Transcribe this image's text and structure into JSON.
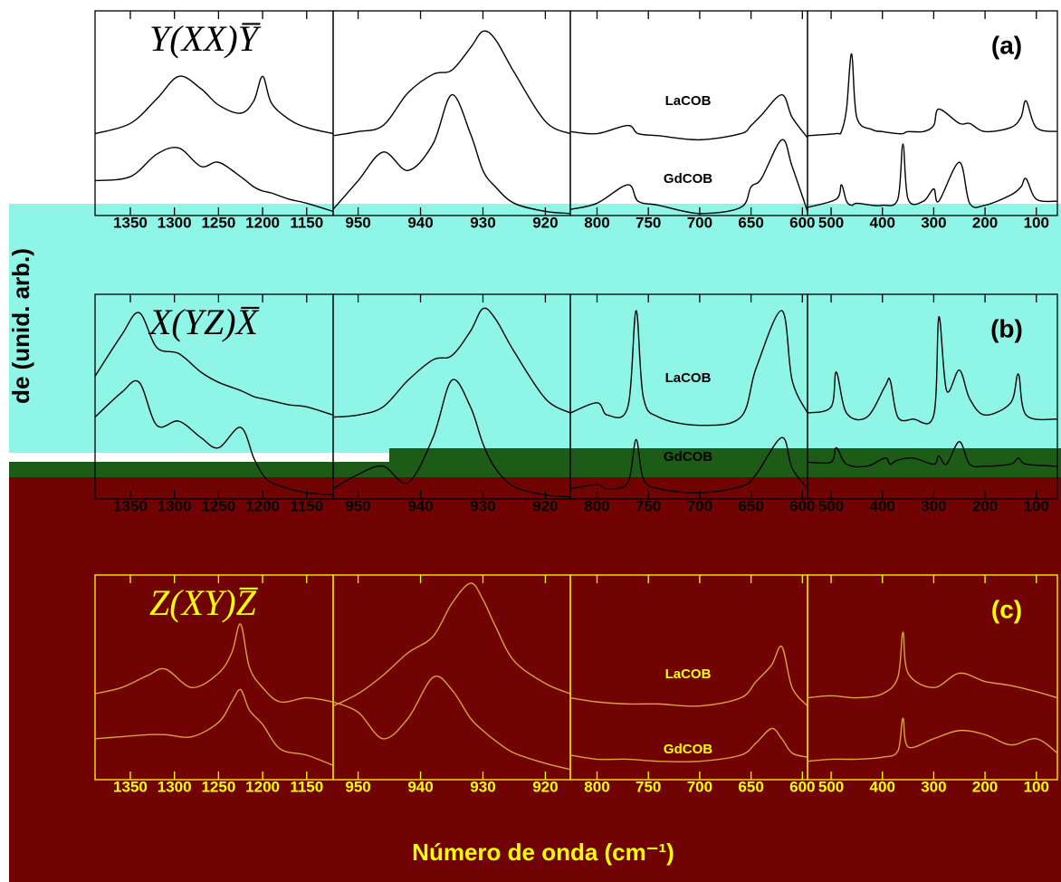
{
  "chart_data": [
    {
      "type": "line",
      "label": "(a)",
      "annotation": "Y(XX)Y̅",
      "ylim": [
        0,
        100
      ],
      "subplots": [
        {
          "xlim": [
            1390,
            1120
          ],
          "xticks": [
            1350,
            1300,
            1250,
            1200,
            1150
          ],
          "x": [
            1390,
            1350,
            1320,
            1295,
            1270,
            1250,
            1225,
            1210,
            1200,
            1190,
            1170,
            1150,
            1120
          ],
          "series": [
            {
              "name": "LaCOB",
              "color": "#000000",
              "values": [
                40,
                45,
                57,
                68,
                62,
                54,
                50,
                56,
                68,
                55,
                47,
                43,
                40
              ]
            },
            {
              "name": "GdCOB",
              "color": "#000000",
              "values": [
                17,
                19,
                30,
                33,
                24,
                26,
                19,
                14,
                12,
                11,
                8,
                6,
                2
              ]
            }
          ]
        },
        {
          "xlim": [
            954,
            916
          ],
          "xticks": [
            950,
            940,
            930,
            920
          ],
          "x": [
            954,
            950,
            946,
            942,
            938,
            935,
            932,
            930,
            928,
            925,
            920,
            916
          ],
          "series": [
            {
              "name": "LaCOB",
              "color": "#000000",
              "values": [
                39,
                41,
                44,
                60,
                69,
                71,
                82,
                90,
                86,
                70,
                46,
                40
              ]
            },
            {
              "name": "GdCOB",
              "color": "#000000",
              "values": [
                3,
                17,
                31,
                22,
                35,
                59,
                40,
                22,
                14,
                6,
                2,
                1
              ]
            }
          ]
        },
        {
          "xlim": [
            826,
            595
          ],
          "xticks": [
            800,
            750,
            700,
            650,
            600
          ],
          "x": [
            826,
            800,
            770,
            760,
            740,
            700,
            660,
            650,
            640,
            620,
            610,
            595
          ],
          "series": [
            {
              "name": "LaCOB",
              "color": "#000000",
              "values": [
                41,
                40,
                44,
                40,
                39,
                37,
                40,
                44,
                49,
                59,
                48,
                38
              ]
            },
            {
              "name": "GdCOB",
              "color": "#000000",
              "values": [
                3,
                6,
                15,
                7,
                5,
                1,
                4,
                14,
                18,
                37,
                24,
                2
              ]
            }
          ]
        },
        {
          "xlim": [
            546,
            59
          ],
          "xticks": [
            500,
            400,
            300,
            200,
            100
          ],
          "x": [
            546,
            490,
            480,
            470,
            460,
            450,
            420,
            400,
            370,
            360,
            350,
            320,
            300,
            290,
            250,
            230,
            200,
            150,
            130,
            120,
            100,
            59
          ],
          "series": [
            {
              "name": "LaCOB",
              "color": "#000000",
              "values": [
                39,
                40,
                41,
                52,
                79,
                48,
                42,
                41,
                40,
                40,
                41,
                41,
                44,
                52,
                45,
                45,
                41,
                43,
                48,
                56,
                43,
                41
              ]
            },
            {
              "name": "GdCOB",
              "color": "#000000",
              "values": [
                4,
                8,
                15,
                7,
                5,
                6,
                5,
                5,
                8,
                35,
                8,
                7,
                13,
                7,
                26,
                6,
                5,
                10,
                14,
                18,
                8,
                7
              ]
            }
          ]
        }
      ]
    },
    {
      "type": "line",
      "label": "(b)",
      "annotation": "X(YZ)X̅",
      "ylabel": "de (unid. arb.)",
      "ylim": [
        0,
        100
      ],
      "subplots": [
        {
          "xlim": [
            1390,
            1120
          ],
          "xticks": [
            1350,
            1300,
            1250,
            1200,
            1150
          ],
          "x": [
            1390,
            1360,
            1340,
            1320,
            1295,
            1270,
            1250,
            1225,
            1210,
            1200,
            1190,
            1170,
            1150,
            1120
          ],
          "series": [
            {
              "name": "LaCOB",
              "color": "#000000",
              "values": [
                60,
                80,
                91,
                74,
                71,
                62,
                57,
                53,
                50,
                49,
                48,
                46,
                45,
                41
              ]
            },
            {
              "name": "GdCOB",
              "color": "#000000",
              "values": [
                40,
                52,
                57,
                36,
                38,
                30,
                25,
                35,
                20,
                12,
                8,
                5,
                3,
                2
              ]
            }
          ]
        },
        {
          "xlim": [
            954,
            916
          ],
          "xticks": [
            950,
            940,
            930,
            920
          ],
          "x": [
            954,
            950,
            946,
            942,
            938,
            935,
            932,
            930,
            928,
            925,
            920,
            916
          ],
          "series": [
            {
              "name": "LaCOB",
              "color": "#000000",
              "values": [
                40,
                41,
                45,
                58,
                68,
                70,
                82,
                93,
                88,
                72,
                49,
                42
              ]
            },
            {
              "name": "GdCOB",
              "color": "#000000",
              "values": [
                5,
                12,
                16,
                8,
                30,
                58,
                45,
                27,
                15,
                6,
                2,
                1
              ]
            }
          ]
        },
        {
          "xlim": [
            826,
            595
          ],
          "xticks": [
            800,
            750,
            700,
            650,
            600
          ],
          "x": [
            826,
            800,
            790,
            770,
            762,
            755,
            740,
            700,
            660,
            645,
            620,
            610,
            595
          ],
          "series": [
            {
              "name": "LaCOB",
              "color": "#000000",
              "values": [
                42,
                47,
                41,
                45,
                92,
                50,
                40,
                36,
                40,
                64,
                92,
                58,
                42
              ]
            },
            {
              "name": "GdCOB",
              "color": "#000000",
              "values": [
                5,
                7,
                5,
                8,
                29,
                10,
                5,
                3,
                6,
                12,
                30,
                15,
                5
              ]
            }
          ]
        },
        {
          "xlim": [
            546,
            59
          ],
          "xticks": [
            500,
            400,
            300,
            200,
            100
          ],
          "x": [
            546,
            500,
            490,
            470,
            430,
            395,
            385,
            370,
            340,
            300,
            290,
            275,
            250,
            230,
            200,
            150,
            135,
            120,
            59
          ],
          "series": [
            {
              "name": "LaCOB",
              "color": "#000000",
              "values": [
                42,
                45,
                62,
                42,
                40,
                55,
                58,
                40,
                39,
                41,
                89,
                53,
                63,
                49,
                41,
                47,
                61,
                41,
                39
              ]
            },
            {
              "name": "GdCOB",
              "color": "#000000",
              "values": [
                18,
                18,
                25,
                17,
                16,
                20,
                17,
                19,
                20,
                17,
                21,
                17,
                28,
                17,
                16,
                17,
                20,
                17,
                16
              ]
            }
          ]
        }
      ]
    },
    {
      "type": "line",
      "label": "(c)",
      "annotation": "Z(XY)Z̅",
      "xlabel": "Número de onda (cm⁻¹)",
      "ylim": [
        0,
        100
      ],
      "subplots": [
        {
          "xlim": [
            1390,
            1120
          ],
          "xticks": [
            1350,
            1300,
            1250,
            1200,
            1150
          ],
          "x": [
            1390,
            1360,
            1330,
            1310,
            1280,
            1250,
            1235,
            1225,
            1215,
            1200,
            1180,
            1150,
            1120
          ],
          "series": [
            {
              "name": "LaCOB",
              "color": "#d8a33a",
              "values": [
                42,
                45,
                51,
                54,
                45,
                52,
                62,
                76,
                55,
                45,
                38,
                40,
                38
              ]
            },
            {
              "name": "GdCOB",
              "color": "#d8a33a",
              "values": [
                20,
                21,
                22,
                22,
                21,
                28,
                38,
                44,
                34,
                27,
                15,
                12,
                7
              ]
            }
          ]
        },
        {
          "xlim": [
            954,
            916
          ],
          "xticks": [
            950,
            940,
            930,
            920
          ],
          "x": [
            954,
            950,
            946,
            942,
            938,
            935,
            932,
            930,
            928,
            925,
            920,
            916
          ],
          "series": [
            {
              "name": "LaCOB",
              "color": "#d8a33a",
              "values": [
                36,
                42,
                51,
                62,
                70,
                86,
                96,
                88,
                75,
                58,
                47,
                42
              ]
            },
            {
              "name": "GdCOB",
              "color": "#d8a33a",
              "values": [
                38,
                33,
                20,
                30,
                50,
                44,
                30,
                24,
                19,
                13,
                8,
                5
              ]
            }
          ]
        },
        {
          "xlim": [
            826,
            595
          ],
          "xticks": [
            800,
            750,
            700,
            650,
            600
          ],
          "x": [
            826,
            800,
            770,
            740,
            700,
            660,
            645,
            630,
            620,
            610,
            595
          ],
          "series": [
            {
              "name": "LaCOB",
              "color": "#d8a33a",
              "values": [
                40,
                38,
                37,
                37,
                36,
                40,
                48,
                56,
                65,
                45,
                36
              ]
            },
            {
              "name": "GdCOB",
              "color": "#d8a33a",
              "values": [
                12,
                10,
                10,
                9,
                9,
                12,
                18,
                25,
                20,
                13,
                11
              ]
            }
          ]
        },
        {
          "xlim": [
            546,
            59
          ],
          "xticks": [
            500,
            400,
            300,
            200,
            100
          ],
          "x": [
            546,
            500,
            450,
            400,
            370,
            360,
            350,
            300,
            250,
            200,
            150,
            100,
            59
          ],
          "series": [
            {
              "name": "LaCOB",
              "color": "#d8a33a",
              "values": [
                40,
                41,
                40,
                42,
                50,
                72,
                52,
                45,
                52,
                48,
                46,
                43,
                40
              ]
            },
            {
              "name": "GdCOB",
              "color": "#d8a33a",
              "values": [
                9,
                10,
                10,
                11,
                14,
                30,
                16,
                20,
                24,
                22,
                17,
                20,
                13
              ]
            }
          ]
        }
      ]
    }
  ]
}
